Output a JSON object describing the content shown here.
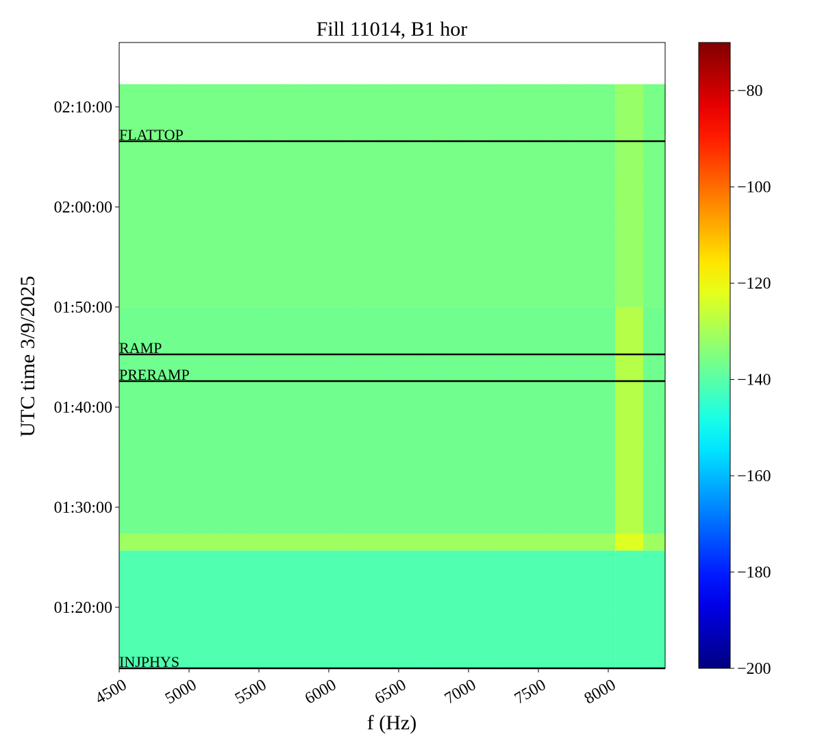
{
  "chart_data": {
    "type": "heatmap",
    "title": "Fill 11014, B1 hor",
    "x_label": "f (Hz)",
    "y_label": "UTC time 3/9/2025",
    "xlim": [
      4500,
      8407
    ],
    "xticks": [
      4500,
      5000,
      5500,
      6000,
      6500,
      7000,
      7500,
      8000
    ],
    "ylim": [
      "01:13:54",
      "02:16:26"
    ],
    "yticks": [
      "01:20:00",
      "01:30:00",
      "01:40:00",
      "01:50:00",
      "02:00:00",
      "02:10:00"
    ],
    "x_edges": [
      4500,
      8050,
      8250,
      8407
    ],
    "y_edges": [
      "01:13:54",
      "01:25:40",
      "01:27:20",
      "01:50:00",
      "02:12:16"
    ],
    "z": [
      [
        -141,
        -141,
        -141
      ],
      [
        -131,
        -123,
        -131
      ],
      [
        -137,
        -128,
        -137
      ],
      [
        -136,
        -132,
        -136
      ]
    ],
    "colormap": "jet",
    "clim": [
      -200,
      -70
    ],
    "cticks": [
      {
        "value": -200,
        "label": "−200"
      },
      {
        "value": -180,
        "label": "−180"
      },
      {
        "value": -160,
        "label": "−160"
      },
      {
        "value": -140,
        "label": "−140"
      },
      {
        "value": -120,
        "label": "−120"
      },
      {
        "value": -100,
        "label": "−100"
      },
      {
        "value": -80,
        "label": "−80"
      }
    ],
    "events": [
      {
        "label": "INJPHYS",
        "time": "01:13:54"
      },
      {
        "label": "PRERAMP",
        "time": "01:42:36"
      },
      {
        "label": "RAMP",
        "time": "01:45:16"
      },
      {
        "label": "FLATTOP",
        "time": "02:06:34"
      }
    ]
  }
}
